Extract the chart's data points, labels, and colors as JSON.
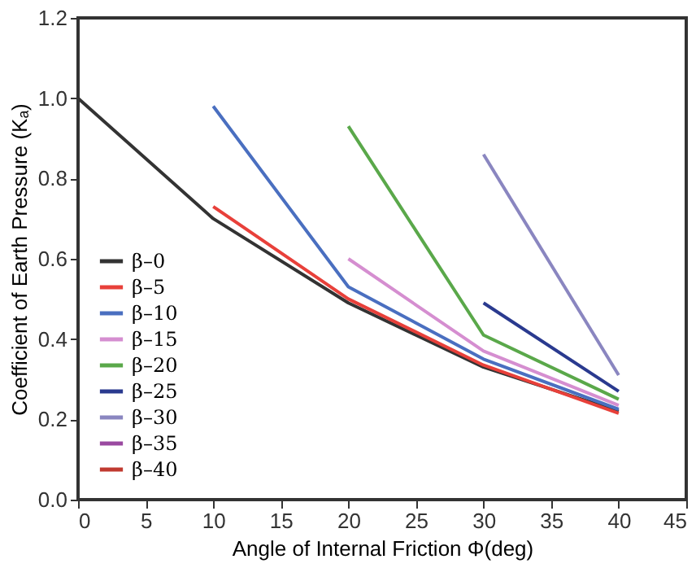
{
  "chart_data": {
    "type": "line",
    "xlabel": "Angle of Internal Friction Φ(deg)",
    "ylabel": "Coefficient of Earth Pressure (Kₐ)",
    "xlim": [
      0,
      45
    ],
    "xticks": [
      0,
      5,
      10,
      15,
      20,
      25,
      30,
      35,
      40,
      45
    ],
    "ylim": [
      0,
      1.2
    ],
    "yticks": [
      {
        "value": 0,
        "label": "0.0"
      },
      {
        "value": 0.2,
        "label": "0.2"
      },
      {
        "value": 0.4,
        "label": "0.4"
      },
      {
        "value": 0.6,
        "label": "0.6"
      },
      {
        "value": 0.8,
        "label": "0.8"
      },
      {
        "value": 1.0,
        "label": "1.0"
      },
      {
        "value": 1.2,
        "label": "1.2"
      }
    ],
    "grid": false,
    "legend": "bottom left",
    "marker": "none",
    "line_style": "solid",
    "series": [
      {
        "name": "β–0",
        "color": "#333333",
        "x": [
          0,
          10,
          20,
          30,
          40
        ],
        "values": [
          1.0,
          0.7,
          0.49,
          0.33,
          0.22
        ]
      },
      {
        "name": "β–5",
        "color": "#e8403a",
        "x": [
          10,
          20,
          30,
          40
        ],
        "values": [
          0.73,
          0.5,
          0.335,
          0.215
        ]
      },
      {
        "name": "β–10",
        "color": "#4a6fc0",
        "x": [
          10,
          20,
          30,
          40
        ],
        "values": [
          0.98,
          0.53,
          0.35,
          0.225
        ]
      },
      {
        "name": "β–15",
        "color": "#d58ed0",
        "x": [
          20,
          30,
          40
        ],
        "values": [
          0.6,
          0.37,
          0.235
        ]
      },
      {
        "name": "β–20",
        "color": "#5aa84a",
        "x": [
          20,
          30,
          40
        ],
        "values": [
          0.93,
          0.41,
          0.25
        ]
      },
      {
        "name": "β–25",
        "color": "#2a3a8f",
        "x": [
          30,
          40
        ],
        "values": [
          0.49,
          0.27
        ]
      },
      {
        "name": "β–30",
        "color": "#8a86c0",
        "x": [
          30,
          40
        ],
        "values": [
          0.86,
          0.31
        ]
      },
      {
        "name": "β–35",
        "color": "#9a4aa0"
      },
      {
        "name": "β–40",
        "color": "#c03a30"
      }
    ]
  }
}
